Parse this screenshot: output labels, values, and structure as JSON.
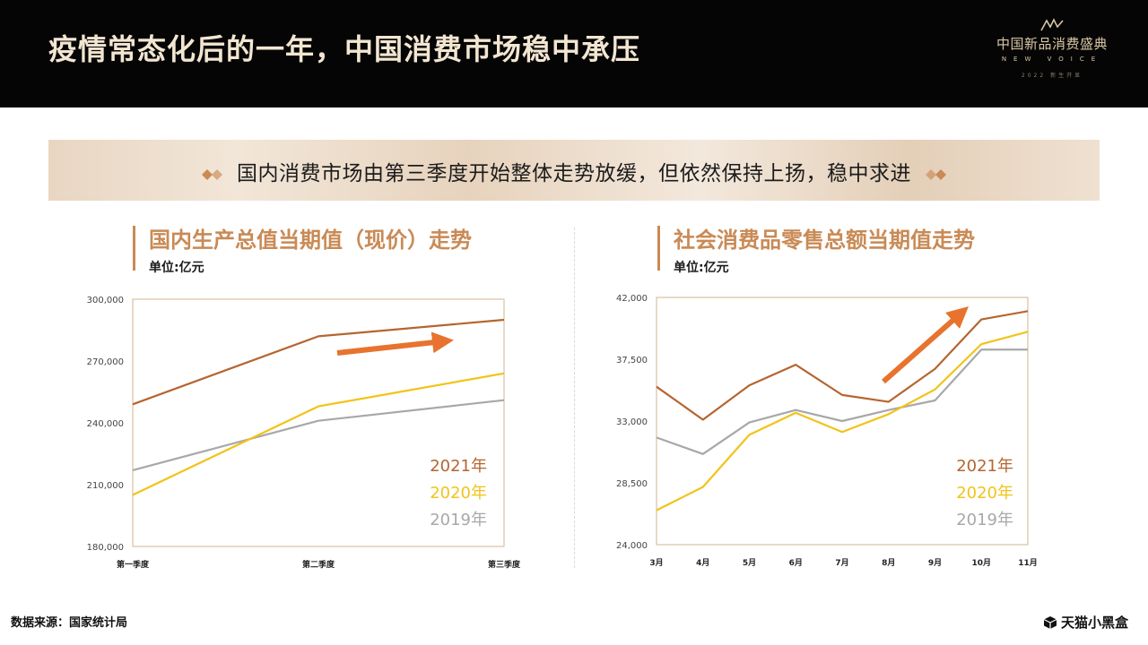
{
  "header": {
    "title": "疫情常态化后的一年，中国消费市场稳中承压",
    "brand": {
      "name": "中国新品消费盛典",
      "en": "NEW VOICE",
      "year": "2022 新生开显"
    }
  },
  "banner": {
    "text": "国内消费市场由第三季度开始整体走势放缓，但依然保持上扬，稳中求进"
  },
  "charts": [
    {
      "title": "国内生产总值当期值（现价）走势",
      "unit": "单位:亿元"
    },
    {
      "title": "社会消费品零售总额当期值走势",
      "unit": "单位:亿元"
    }
  ],
  "chart_data": [
    {
      "type": "line",
      "categories": [
        "第一季度",
        "第二季度",
        "第三季度"
      ],
      "ylim": [
        180000,
        300000
      ],
      "yticks": [
        "180,000",
        "210,000",
        "240,000",
        "270,000",
        "300,000"
      ],
      "ytick_values": [
        180000,
        210000,
        240000,
        270000,
        300000
      ],
      "series": [
        {
          "name": "2021年",
          "color": "#b5652f",
          "values": [
            249000,
            282000,
            290000
          ]
        },
        {
          "name": "2020年",
          "color": "#f2c318",
          "values": [
            205000,
            248000,
            264000
          ]
        },
        {
          "name": "2019年",
          "color": "#a8a8a8",
          "values": [
            217000,
            241000,
            251000
          ]
        }
      ],
      "legend": "bottom-right",
      "annotation": "trend-arrow"
    },
    {
      "type": "line",
      "categories": [
        "3月",
        "4月",
        "5月",
        "6月",
        "7月",
        "8月",
        "9月",
        "10月",
        "11月"
      ],
      "ylim": [
        24000,
        42000
      ],
      "yticks": [
        "24,000",
        "28,500",
        "33,000",
        "37,500",
        "42,000"
      ],
      "ytick_values": [
        24000,
        28500,
        33000,
        37500,
        42000
      ],
      "series": [
        {
          "name": "2021年",
          "color": "#b5652f",
          "values": [
            35500,
            33100,
            35600,
            37100,
            34900,
            34400,
            36800,
            40400,
            41000
          ]
        },
        {
          "name": "2020年",
          "color": "#f2c318",
          "values": [
            26500,
            28200,
            32000,
            33600,
            32200,
            33500,
            35300,
            38600,
            39500
          ]
        },
        {
          "name": "2019年",
          "color": "#a8a8a8",
          "values": [
            31800,
            30600,
            32900,
            33800,
            33000,
            33800,
            34500,
            38200,
            38200
          ]
        }
      ],
      "legend": "bottom-right",
      "annotation": "trend-arrow"
    }
  ],
  "footer": {
    "source": "数据来源：国家统计局",
    "brand": "天猫小黑盒"
  }
}
